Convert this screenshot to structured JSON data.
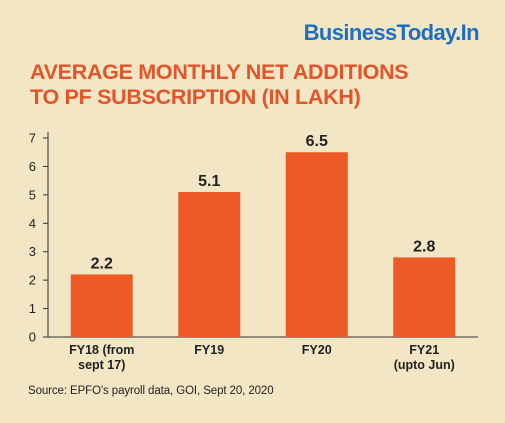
{
  "brand": "BusinessToday.In",
  "title_lines": [
    "AVERAGE MONTHLY NET ADDITIONS",
    "TO PF SUBSCRIPTION (IN LAKH)"
  ],
  "source": "Source: EPFO's payroll data, GOI, Sept 20, 2020",
  "colors": {
    "bar": "#ee5a26",
    "background": "#f3e6c4",
    "title": "#e2552a",
    "brand": "#1f6fc1"
  },
  "chart_data": {
    "type": "bar",
    "title": "AVERAGE MONTHLY NET ADDITIONS TO PF SUBSCRIPTION (IN LAKH)",
    "categories": [
      [
        "FY18 (from",
        "sept 17)"
      ],
      [
        "FY19"
      ],
      [
        "FY20"
      ],
      [
        "FY21",
        "(upto Jun)"
      ]
    ],
    "values": [
      2.2,
      5.1,
      6.5,
      2.8
    ],
    "value_labels": [
      "2.2",
      "5.1",
      "6.5",
      "2.8"
    ],
    "yticks": [
      0,
      1,
      2,
      3,
      4,
      5,
      6,
      7
    ],
    "ylim": [
      0,
      7
    ],
    "xlabel": "",
    "ylabel": "",
    "grid": false,
    "legend": "none"
  }
}
